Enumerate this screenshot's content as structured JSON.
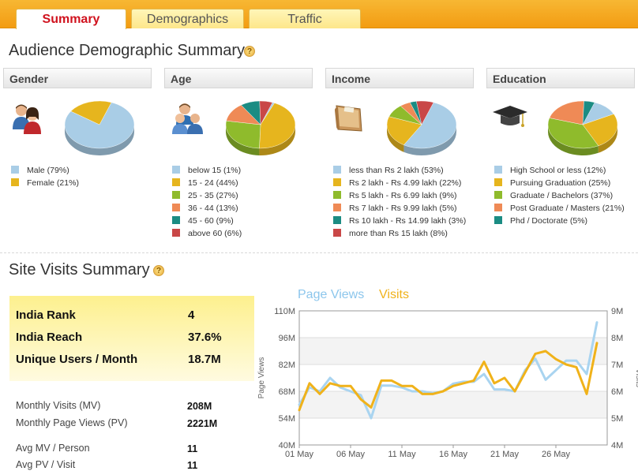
{
  "tabs": [
    {
      "label": "Summary",
      "active": true
    },
    {
      "label": "Demographics",
      "active": false
    },
    {
      "label": "Traffic",
      "active": false
    }
  ],
  "audience_title": "Audience Demographic Summary",
  "help_glyph": "?",
  "demographics": [
    {
      "title": "Gender",
      "icon": "users-gender-icon",
      "items": [
        {
          "label": "Male (79%)",
          "value": 79,
          "color": "#a9cde6"
        },
        {
          "label": "Female (21%)",
          "value": 21,
          "color": "#e6b51e"
        }
      ]
    },
    {
      "title": "Age",
      "icon": "users-group-icon",
      "items": [
        {
          "label": "below 15 (1%)",
          "value": 1,
          "color": "#a9cde6"
        },
        {
          "label": "15 - 24 (44%)",
          "value": 44,
          "color": "#e6b51e"
        },
        {
          "label": "25 - 35 (27%)",
          "value": 27,
          "color": "#8fbb2c"
        },
        {
          "label": "36 - 44 (13%)",
          "value": 13,
          "color": "#ef8a56"
        },
        {
          "label": "45 - 60 (9%)",
          "value": 9,
          "color": "#1b8c83"
        },
        {
          "label": "above 60 (6%)",
          "value": 6,
          "color": "#c94747"
        }
      ]
    },
    {
      "title": "Income",
      "icon": "wallet-icon",
      "items": [
        {
          "label": "less than Rs 2 lakh (53%)",
          "value": 53,
          "color": "#a9cde6"
        },
        {
          "label": "Rs 2 lakh - Rs 4.99 lakh (22%)",
          "value": 22,
          "color": "#e6b51e"
        },
        {
          "label": "Rs 5 lakh - Rs 6.99 lakh (9%)",
          "value": 9,
          "color": "#8fbb2c"
        },
        {
          "label": "Rs 7 lakh - Rs 9.99 lakh (5%)",
          "value": 5,
          "color": "#ef8a56"
        },
        {
          "label": "Rs 10 lakh - Rs 14.99 lakh (3%)",
          "value": 3,
          "color": "#1b8c83"
        },
        {
          "label": "more than Rs 15 lakh (8%)",
          "value": 8,
          "color": "#c94747"
        }
      ]
    },
    {
      "title": "Education",
      "icon": "graduation-cap-icon",
      "items": [
        {
          "label": "High School or less (12%)",
          "value": 12,
          "color": "#a9cde6"
        },
        {
          "label": "Pursuing Graduation (25%)",
          "value": 25,
          "color": "#e6b51e"
        },
        {
          "label": "Graduate / Bachelors (37%)",
          "value": 37,
          "color": "#8fbb2c"
        },
        {
          "label": "Post Graduate / Masters (21%)",
          "value": 21,
          "color": "#ef8a56"
        },
        {
          "label": "Phd / Doctorate (5%)",
          "value": 5,
          "color": "#1b8c83"
        }
      ]
    }
  ],
  "site_visits_title": "Site Visits Summary",
  "rank": [
    {
      "label": "India Rank",
      "value": "4"
    },
    {
      "label": "India Reach",
      "value": "37.6%"
    },
    {
      "label": "Unique Users / Month",
      "value": "18.7M"
    }
  ],
  "stats": [
    {
      "label": "Monthly Visits (MV)",
      "value": "208M"
    },
    {
      "label": "Monthly Page Views (PV)",
      "value": "2221M"
    },
    {
      "label": "Avg MV / Person",
      "value": "11"
    },
    {
      "label": "Avg PV / Visit",
      "value": "11"
    }
  ],
  "colors": {
    "page_views": "#a9d4f0",
    "visits": "#f0b21a",
    "tab_accent": "#f39c12"
  },
  "chart_data": {
    "type": "line",
    "legend": [
      "Page Views",
      "Visits"
    ],
    "ylabel_left": "Page Views",
    "ylabel_right": "Visits",
    "y_left_ticks": [
      "110M",
      "96M",
      "82M",
      "68M",
      "54M",
      "40M"
    ],
    "y_right_ticks": [
      "9M",
      "8M",
      "7M",
      "6M",
      "5M",
      "4M"
    ],
    "y_left_range": [
      40,
      110
    ],
    "y_right_range": [
      4,
      9
    ],
    "x_ticks": [
      "01 May",
      "06 May",
      "11 May",
      "16 May",
      "21 May",
      "26 May"
    ],
    "x_tick_days": [
      1,
      6,
      11,
      16,
      21,
      26
    ],
    "x_range": [
      1,
      31
    ],
    "series": [
      {
        "name": "Page Views",
        "axis": "left",
        "values": [
          61,
          70,
          68,
          75,
          70,
          68,
          66,
          54,
          71,
          71,
          70,
          68,
          68,
          67,
          68,
          72,
          73,
          73,
          77,
          69,
          69,
          68,
          79,
          85,
          74,
          79,
          84,
          84,
          77,
          104
        ]
      },
      {
        "name": "Visits",
        "axis": "right",
        "values": [
          5.3,
          6.3,
          5.9,
          6.3,
          6.2,
          6.2,
          5.7,
          5.4,
          6.4,
          6.4,
          6.2,
          6.2,
          5.9,
          5.9,
          6.0,
          6.2,
          6.3,
          6.4,
          7.1,
          6.3,
          6.5,
          6.0,
          6.7,
          7.4,
          7.5,
          7.2,
          7.0,
          6.9,
          5.9,
          7.8
        ]
      }
    ]
  }
}
